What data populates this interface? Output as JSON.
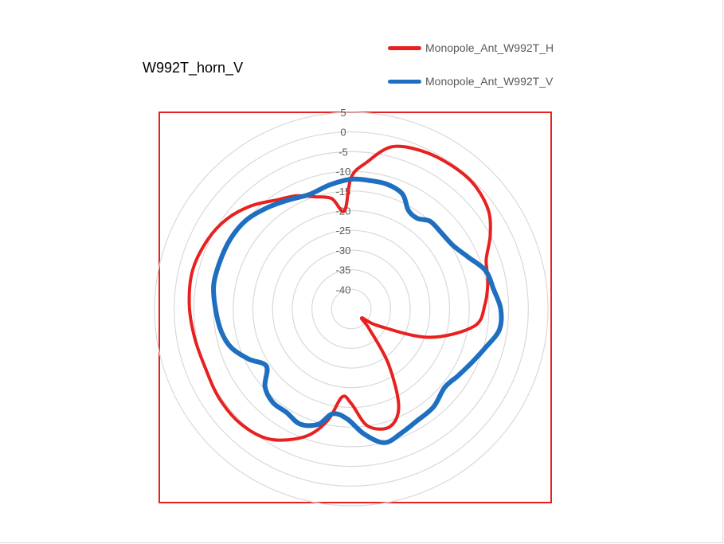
{
  "chart_data": {
    "type": "polar-line",
    "title": "W992T_horn_V",
    "r_ticks": [
      5,
      0,
      -5,
      -10,
      -15,
      -20,
      -25,
      -30,
      -35,
      -40
    ],
    "rlim": [
      -45,
      5
    ],
    "grid": true,
    "legend_position": "top-right",
    "series": [
      {
        "name": "Monopole_Ant_W992T_H",
        "color": "#e8201f",
        "points": [
          [
            0,
            -11.5
          ],
          [
            6,
            -7.5
          ],
          [
            14,
            -2.5
          ],
          [
            24,
            -1.0
          ],
          [
            34,
            -0.5
          ],
          [
            44,
            -0.5
          ],
          [
            54,
            -2.0
          ],
          [
            62,
            -5.0
          ],
          [
            70,
            -8.5
          ],
          [
            78,
            -9.5
          ],
          [
            88,
            -11.0
          ],
          [
            98,
            -13.5
          ],
          [
            110,
            -24.0
          ],
          [
            122,
            -37.0
          ],
          [
            130,
            -41.5
          ],
          [
            138,
            -38.0
          ],
          [
            146,
            -28.0
          ],
          [
            154,
            -17.5
          ],
          [
            162,
            -13.5
          ],
          [
            172,
            -15.0
          ],
          [
            180,
            -21.0
          ],
          [
            186,
            -22.5
          ],
          [
            192,
            -16.0
          ],
          [
            200,
            -10.5
          ],
          [
            212,
            -6.0
          ],
          [
            224,
            -4.5
          ],
          [
            236,
            -4.5
          ],
          [
            248,
            -5.0
          ],
          [
            260,
            -4.5
          ],
          [
            272,
            -3.8
          ],
          [
            284,
            -3.5
          ],
          [
            296,
            -4.5
          ],
          [
            306,
            -6.0
          ],
          [
            316,
            -8.5
          ],
          [
            326,
            -11.5
          ],
          [
            334,
            -13.0
          ],
          [
            342,
            -15.0
          ],
          [
            350,
            -16.5
          ],
          [
            356,
            -20.0
          ],
          [
            360,
            -11.5
          ]
        ]
      },
      {
        "name": "Monopole_Ant_W992T_V",
        "color": "#1f6fc0",
        "points": [
          [
            0,
            -12.0
          ],
          [
            8,
            -12.0
          ],
          [
            16,
            -12.0
          ],
          [
            24,
            -13.0
          ],
          [
            30,
            -16.0
          ],
          [
            36,
            -16.5
          ],
          [
            42,
            -15.0
          ],
          [
            50,
            -15.0
          ],
          [
            58,
            -14.5
          ],
          [
            66,
            -12.5
          ],
          [
            74,
            -9.5
          ],
          [
            82,
            -8.5
          ],
          [
            90,
            -7.0
          ],
          [
            98,
            -7.0
          ],
          [
            106,
            -9.5
          ],
          [
            114,
            -11.5
          ],
          [
            122,
            -13.0
          ],
          [
            130,
            -14.0
          ],
          [
            140,
            -12.5
          ],
          [
            150,
            -12.0
          ],
          [
            158,
            -11.0
          ],
          [
            166,
            -10.0
          ],
          [
            174,
            -13.0
          ],
          [
            182,
            -17.0
          ],
          [
            190,
            -18.0
          ],
          [
            196,
            -14.5
          ],
          [
            204,
            -13.0
          ],
          [
            212,
            -14.0
          ],
          [
            220,
            -14.0
          ],
          [
            228,
            -15.5
          ],
          [
            236,
            -19.0
          ],
          [
            244,
            -16.0
          ],
          [
            252,
            -13.0
          ],
          [
            260,
            -11.5
          ],
          [
            270,
            -10.5
          ],
          [
            280,
            -9.5
          ],
          [
            290,
            -9.5
          ],
          [
            300,
            -9.5
          ],
          [
            310,
            -10.0
          ],
          [
            320,
            -11.5
          ],
          [
            330,
            -13.0
          ],
          [
            340,
            -14.0
          ],
          [
            350,
            -13.0
          ],
          [
            360,
            -12.0
          ]
        ]
      }
    ]
  }
}
